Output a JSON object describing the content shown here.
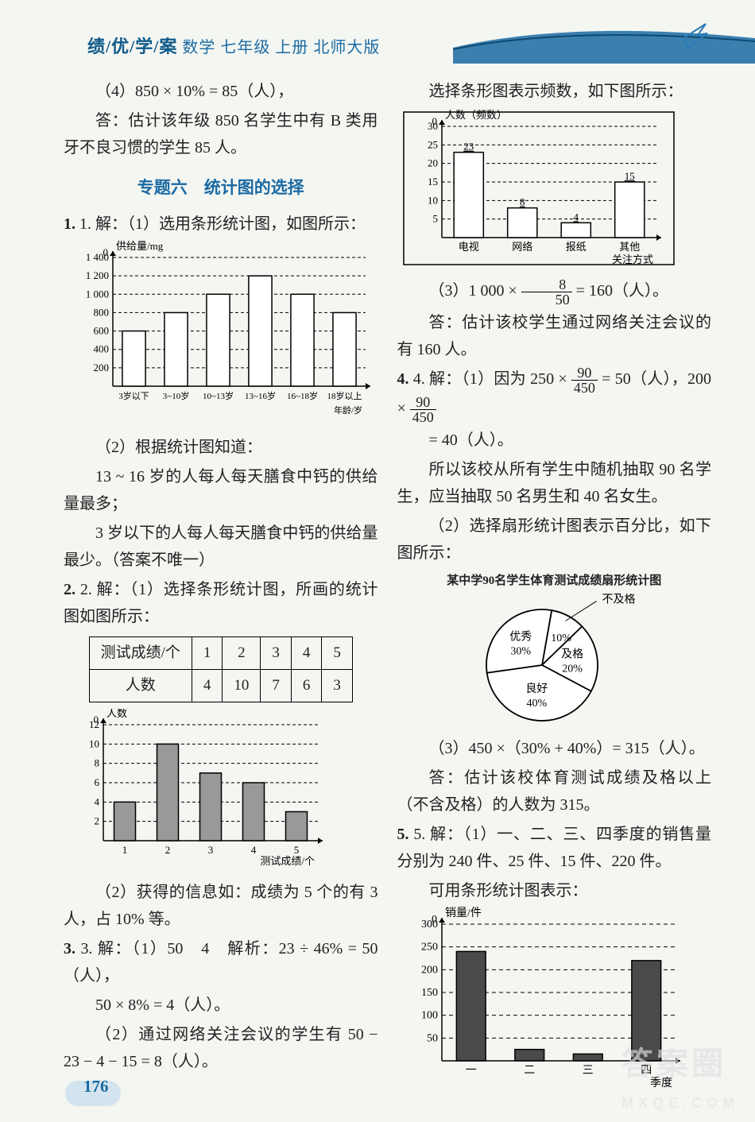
{
  "header": {
    "brand": "绩/优/学/案",
    "subject": "数学 七年级 上册 北师大版"
  },
  "left": {
    "p1": "（4）850 × 10% = 85（人），",
    "p2": "答：估计该年级 850 名学生中有 B 类用牙不良习惯的学生 85 人。",
    "section_title": "专题六　统计图的选择",
    "q1a": "1. 解：（1）选用条形统计图，如图所示：",
    "chart1": {
      "type": "bar",
      "y_label": "供给量/mg",
      "x_label": "年龄/岁",
      "categories": [
        "3岁以下",
        "3~10岁",
        "10~13岁",
        "13~16岁",
        "16~18岁",
        "18岁以上"
      ],
      "values": [
        600,
        800,
        1000,
        1200,
        1000,
        800
      ],
      "ylim": [
        0,
        1400
      ],
      "ytick_step": 200,
      "yticks": [
        "200",
        "400",
        "600",
        "800",
        "1 000",
        "1 200",
        "1 400"
      ],
      "bar_color": "#ffffff",
      "bar_border": "#000000",
      "axis_color": "#000000",
      "grid": true,
      "grid_dash": "4 3",
      "bar_width": 0.55,
      "font_size": 13
    },
    "q1b_lines": [
      "（2）根据统计图知道：",
      "13 ~ 16 岁的人每人每天膳食中钙的供给量最多；",
      "3 岁以下的人每人每天膳食中钙的供给量最少。（答案不唯一）"
    ],
    "q2a": "2. 解：（1）选择条形统计图，所画的统计图如图所示：",
    "table2": {
      "columns": [
        "测试成绩/个",
        "1",
        "2",
        "3",
        "4",
        "5"
      ],
      "rows": [
        [
          "人数",
          "4",
          "10",
          "7",
          "6",
          "3"
        ]
      ]
    },
    "chart2": {
      "type": "bar",
      "y_label": "人数",
      "x_label": "测试成绩/个",
      "categories": [
        "1",
        "2",
        "3",
        "4",
        "5"
      ],
      "values": [
        4,
        10,
        7,
        6,
        3
      ],
      "ylim": [
        0,
        12
      ],
      "ytick_step": 2,
      "bar_color": "#999999",
      "bar_border": "#000000",
      "axis_color": "#000000",
      "grid": true,
      "grid_dash": "4 3",
      "bar_width": 0.5,
      "font_size": 13
    },
    "q2b": "（2）获得的信息如：成绩为 5 个的有 3 人，占 10% 等。",
    "q3a": "3. 解：（1）50　4　解析：23 ÷ 46% = 50（人），",
    "q3a2": "50 × 8% = 4（人）。",
    "q3b": "（2）通过网络关注会议的学生有 50 − 23 − 4 − 15 = 8（人）。"
  },
  "right": {
    "p1": "选择条形图表示频数，如下图所示：",
    "chart3": {
      "type": "bar",
      "y_label": "人数（频数）",
      "x_label": "关注方式",
      "categories": [
        "电视",
        "网络",
        "报纸",
        "其他"
      ],
      "values": [
        23,
        8,
        4,
        15
      ],
      "value_labels": [
        "23",
        "8",
        "4",
        "15"
      ],
      "ylim": [
        0,
        30
      ],
      "ytick_step": 5,
      "bar_color": "#ffffff",
      "bar_border": "#000000",
      "axis_color": "#000000",
      "grid": true,
      "grid_dash": "4 3",
      "bar_width": 0.55,
      "font_size": 13,
      "border_box": true
    },
    "q3c_pre": "（3）1 000 × ",
    "q3c_frac_t": "8",
    "q3c_frac_b": "50",
    "q3c_post": " = 160（人）。",
    "q3ans": "答：估计该校学生通过网络关注会议的有 160 人。",
    "q4a_pre": "4. 解：（1）因为 250 × ",
    "q4a_f1t": "90",
    "q4a_f1b": "450",
    "q4a_mid": " = 50（人），200 × ",
    "q4a_f2t": "90",
    "q4a_f2b": "450",
    "q4a_post": "= 40（人）。",
    "q4a2": "所以该校从所有学生中随机抽取 90 名学生，应当抽取 50 名男生和 40 名女生。",
    "q4b": "（2）选择扇形统计图表示百分比，如下图所示：",
    "pie_title": "某中学90名学生体育测试成绩扇形统计图",
    "pie": {
      "type": "pie",
      "slices": [
        {
          "label": "不及格",
          "pct": 10,
          "text": "10%",
          "color": "#ffffff"
        },
        {
          "label": "及格",
          "pct": 20,
          "text": "20%",
          "color": "#ffffff"
        },
        {
          "label": "良好",
          "pct": 40,
          "text": "40%",
          "color": "#ffffff"
        },
        {
          "label": "优秀",
          "pct": 30,
          "text": "30%",
          "color": "#ffffff"
        }
      ],
      "border": "#000000",
      "font_size": 14,
      "radius": 70
    },
    "q4c": "（3）450 ×（30% + 40%）= 315（人）。",
    "q4ans": "答：估计该校体育测试成绩及格以上（不含及格）的人数为 315。",
    "q5a": "5. 解：（1）一、二、三、四季度的销售量分别为 240 件、25 件、15 件、220 件。",
    "q5a2": "可用条形统计图表示：",
    "chart5": {
      "type": "bar",
      "y_label": "销量/件",
      "x_label": "季度",
      "categories": [
        "一",
        "二",
        "三",
        "四"
      ],
      "values": [
        240,
        25,
        15,
        220
      ],
      "ylim": [
        0,
        300
      ],
      "ytick_step": 50,
      "bar_color": "#4a4a4a",
      "bar_border": "#000000",
      "axis_color": "#000000",
      "grid": true,
      "grid_dash": "5 4",
      "bar_width": 0.5,
      "font_size": 14
    }
  },
  "page_number": "176",
  "watermark": {
    "main": "答案圈",
    "sub": "MXQE.COM"
  }
}
